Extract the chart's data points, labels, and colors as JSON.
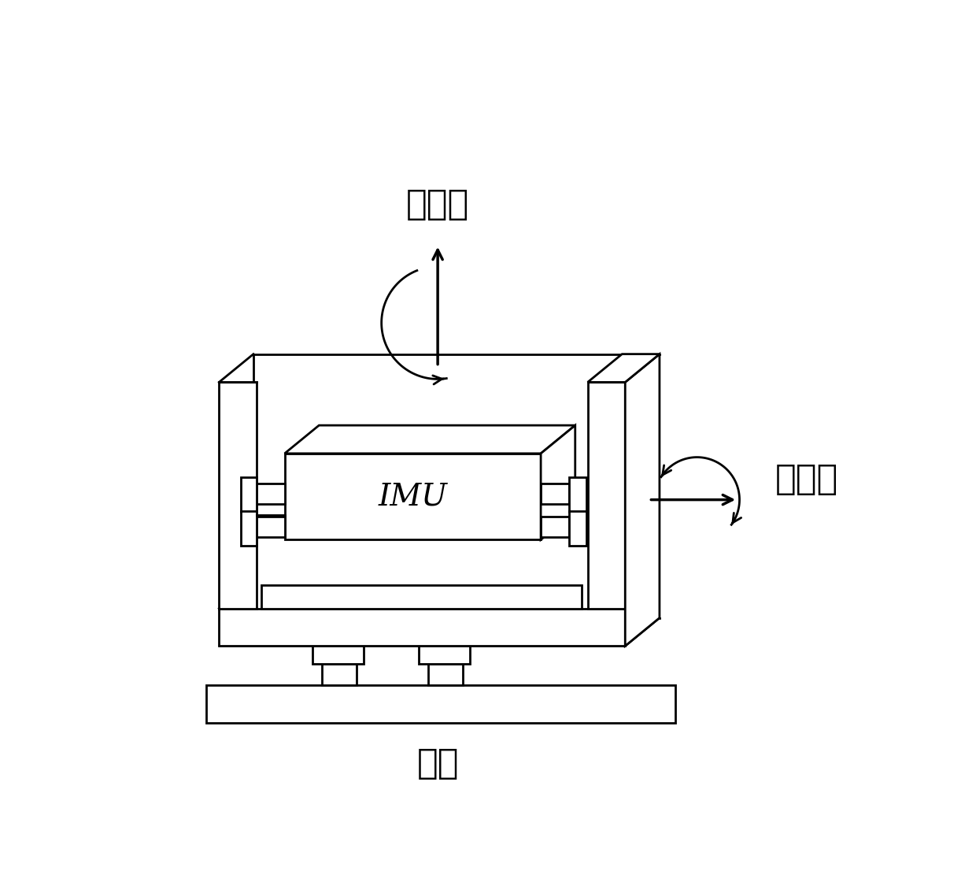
{
  "bg_color": "#ffffff",
  "line_color": "#000000",
  "line_width": 2.0,
  "title_outer_axis": "外环轴",
  "title_inner_axis": "内环轴",
  "title_base": "基座",
  "imu_label": "IMU",
  "font_size_labels": 32,
  "font_size_imu": 28,
  "xlim": [
    0,
    12
  ],
  "ylim": [
    0,
    11
  ]
}
